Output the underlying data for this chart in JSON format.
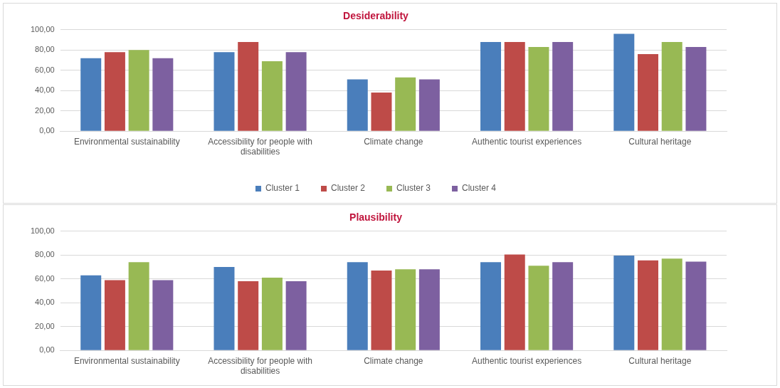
{
  "chart_data": [
    {
      "type": "bar",
      "title": "Desiderability",
      "categories": [
        "Environmental sustainability",
        "Accessibility for people with disabilities",
        "Climate change",
        "Authentic tourist experiences",
        "Cultural heritage"
      ],
      "series": [
        {
          "name": "Cluster 1",
          "color": "#4a7ebb",
          "values": [
            72,
            78,
            51,
            88,
            96
          ]
        },
        {
          "name": "Cluster 2",
          "color": "#be4b48",
          "values": [
            78,
            88,
            38,
            88,
            76
          ]
        },
        {
          "name": "Cluster 3",
          "color": "#98b954",
          "values": [
            80,
            69,
            53,
            83,
            88
          ]
        },
        {
          "name": "Cluster 4",
          "color": "#7d60a0",
          "values": [
            72,
            78,
            51,
            88,
            83
          ]
        }
      ],
      "ylim": [
        0,
        100
      ],
      "yticks": [
        {
          "value": 0,
          "label": "0,00"
        },
        {
          "value": 20,
          "label": "20,00"
        },
        {
          "value": 40,
          "label": "40,00"
        },
        {
          "value": 60,
          "label": "60,00"
        },
        {
          "value": 80,
          "label": "80,00"
        },
        {
          "value": 100,
          "label": "100,00"
        }
      ],
      "grid": "y",
      "legend": "bottom"
    },
    {
      "type": "bar",
      "title": "Plausibility",
      "categories": [
        "Environmental sustainability",
        "Accessibility for people with disabilities",
        "Climate change",
        "Authentic tourist experiences",
        "Cultural heritage"
      ],
      "series": [
        {
          "color": "#4a7ebb",
          "values": [
            63,
            70,
            74,
            74,
            79.5
          ]
        },
        {
          "color": "#be4b48",
          "values": [
            59,
            58,
            67,
            80.5,
            75.5
          ]
        },
        {
          "color": "#98b954",
          "values": [
            74,
            61,
            68,
            71,
            77
          ]
        },
        {
          "color": "#7d60a0",
          "values": [
            59,
            58,
            68,
            74,
            74.5
          ]
        }
      ],
      "ylim": [
        0,
        100
      ],
      "yticks": [
        {
          "value": 0,
          "label": "0,00"
        },
        {
          "value": 20,
          "label": "20,00"
        },
        {
          "value": 40,
          "label": "40,00"
        },
        {
          "value": 60,
          "label": "60,00"
        },
        {
          "value": 80,
          "label": "80,00"
        },
        {
          "value": 100,
          "label": "100,00"
        }
      ],
      "grid": "y"
    }
  ]
}
